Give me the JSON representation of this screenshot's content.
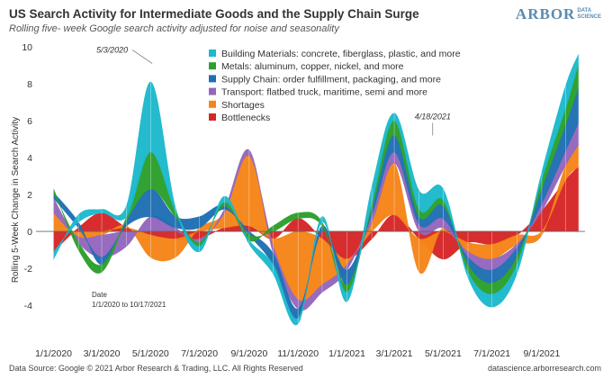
{
  "header": {
    "title": "US Search Activity for Intermediate Goods and the Supply Chain Surge",
    "subtitle": "Rolling five- week Google search activity adjusted for noise and seasonality",
    "logo_main": "ARBOR",
    "logo_sub_1": "DATA",
    "logo_sub_2": "SCIENCE"
  },
  "footer": {
    "source": "Data Source: Google © 2021 Arbor Research & Trading, LLC. All Rights Reserved",
    "site": "datascience.arborresearch.com"
  },
  "colors": {
    "Building Materials": "#1cb9cc",
    "Metals": "#2ca02c",
    "Supply Chain": "#1f6fb4",
    "Transport": "#9467bd",
    "Shortages": "#f58518",
    "Bottlenecks": "#d62728"
  },
  "chart_data": {
    "type": "area",
    "stacking": "diverging",
    "ylabel": "Rolling 5-Week Change in Search Activity",
    "ylim": [
      -5.8,
      10
    ],
    "yticks": [
      -4,
      -2,
      0,
      2,
      4,
      6,
      8,
      10
    ],
    "xlim": [
      "2019-12-10",
      "2021-10-25"
    ],
    "xtick_labels": [
      "1/1/2020",
      "3/1/2020",
      "5/1/2020",
      "7/1/2020",
      "9/1/2020",
      "11/1/2020",
      "1/1/2021",
      "3/1/2021",
      "5/1/2021",
      "7/1/2021",
      "9/1/2021"
    ],
    "xtick_dates": [
      "2020-01-01",
      "2020-03-01",
      "2020-05-01",
      "2020-07-01",
      "2020-09-01",
      "2020-11-01",
      "2021-01-01",
      "2021-03-01",
      "2021-05-01",
      "2021-07-01",
      "2021-09-01"
    ],
    "x": [
      "2020-01-01",
      "2020-02-01",
      "2020-03-01",
      "2020-04-01",
      "2020-05-01",
      "2020-06-01",
      "2020-07-01",
      "2020-08-01",
      "2020-09-01",
      "2020-10-01",
      "2020-11-01",
      "2020-12-01",
      "2021-01-01",
      "2021-02-01",
      "2021-03-01",
      "2021-04-01",
      "2021-05-01",
      "2021-06-01",
      "2021-07-01",
      "2021-08-01",
      "2021-09-01",
      "2021-10-01",
      "2021-10-17"
    ],
    "series": [
      {
        "name": "Bottlenecks",
        "values": [
          -1.1,
          0.2,
          1.0,
          0.2,
          -0.2,
          -0.4,
          -0.4,
          0.2,
          0.3,
          -0.4,
          0.7,
          -0.4,
          -1.5,
          -0.4,
          0.9,
          -0.4,
          -1.5,
          -0.6,
          -0.7,
          -0.2,
          1.1,
          2.8,
          3.5
        ]
      },
      {
        "name": "Shortages",
        "values": [
          1.0,
          -0.3,
          -0.2,
          0.1,
          -1.2,
          -1.0,
          0.2,
          0.8,
          3.8,
          -0.4,
          -3.7,
          -2.5,
          -0.3,
          0.5,
          2.8,
          -1.8,
          0.2,
          -0.5,
          -0.8,
          -0.5,
          -0.2,
          0.8,
          1.2
        ]
      },
      {
        "name": "Transport",
        "values": [
          0.8,
          -0.3,
          -1.2,
          -0.8,
          0.8,
          0.2,
          -0.2,
          0.2,
          0.3,
          -0.4,
          -0.5,
          -0.4,
          -0.3,
          0.4,
          0.6,
          0.4,
          0.5,
          -0.3,
          -0.6,
          -0.2,
          0.4,
          0.8,
          1.2
        ]
      },
      {
        "name": "Supply Chain",
        "values": [
          0.3,
          0.3,
          -0.4,
          0.3,
          1.5,
          0.6,
          0.6,
          0.2,
          -0.2,
          -0.6,
          -0.5,
          0.3,
          -0.8,
          0.3,
          0.9,
          0.4,
          0.7,
          -0.4,
          -0.7,
          -0.5,
          0.8,
          1.4,
          1.9
        ]
      },
      {
        "name": "Metals",
        "values": [
          0.2,
          -0.4,
          -0.4,
          0.2,
          2.0,
          0.3,
          -0.2,
          0.2,
          -0.3,
          0.3,
          0.3,
          0.2,
          -0.4,
          0.3,
          0.8,
          0.4,
          0.3,
          -0.4,
          -0.6,
          -0.4,
          0.5,
          0.9,
          1.3
        ]
      },
      {
        "name": "Building Materials",
        "values": [
          -0.4,
          0.4,
          0.2,
          0.6,
          3.8,
          0.2,
          -0.3,
          0.3,
          -0.2,
          -0.5,
          -0.3,
          0.3,
          -0.5,
          0.9,
          0.4,
          1.0,
          0.6,
          -0.3,
          -0.7,
          -0.5,
          0.4,
          1.2,
          0.5
        ]
      }
    ],
    "legend": {
      "position": "top-center",
      "entries": [
        {
          "series": "Building Materials",
          "label": "Building Materials: concrete, fiberglass, plastic, and more"
        },
        {
          "series": "Metals",
          "label": "Metals: aluminum, copper, nickel, and more"
        },
        {
          "series": "Supply Chain",
          "label": "Supply Chain: order fulfillment, packaging, and more"
        },
        {
          "series": "Transport",
          "label": "Transport: flatbed truck, maritime, semi and more"
        },
        {
          "series": "Shortages",
          "label": "Shortages"
        },
        {
          "series": "Bottlenecks",
          "label": "Bottlenecks"
        }
      ]
    },
    "annotations": [
      {
        "text": "5/3/2020",
        "date": "2020-05-03",
        "y": 9.0
      },
      {
        "text": "4/18/2021",
        "date": "2021-04-18",
        "y": 5.1
      }
    ],
    "date_note": {
      "label": "Date",
      "range": "1/1/2020 to 10/17/2021"
    },
    "grid": false
  }
}
